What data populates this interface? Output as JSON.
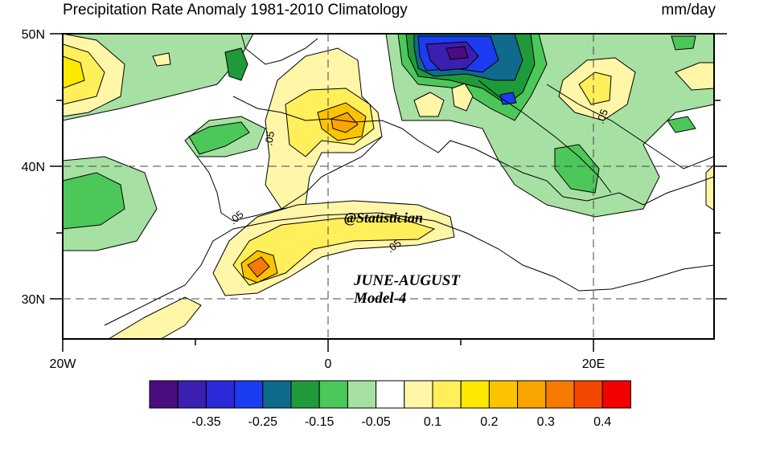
{
  "header": {
    "title": "Precipitation Rate Anomaly  1981-2010 Climatology",
    "units": "mm/day"
  },
  "map": {
    "lat_labels": [
      "50N",
      "40N",
      "30N"
    ],
    "lon_labels": [
      "20W",
      "0",
      "20E"
    ],
    "contour_labels": [
      ".05",
      ".05",
      ".05",
      ".05"
    ]
  },
  "overlay": {
    "watermark": "@Statistician",
    "season": "JUNE-AUGUST",
    "model": "Model-4"
  },
  "colorbar": {
    "colors": [
      "#4b0c80",
      "#3a1fb0",
      "#2a2ad8",
      "#1b3cf0",
      "#106a8c",
      "#1f9a3a",
      "#4cc85a",
      "#a6e0a2",
      "#ffffff",
      "#fff6a8",
      "#ffef5a",
      "#fde800",
      "#fcc400",
      "#f9a400",
      "#f77a00",
      "#f44800",
      "#f40000"
    ],
    "tick_labels": [
      "-0.35",
      "-0.25",
      "-0.15",
      "-0.05",
      "0.1",
      "0.2",
      "0.3",
      "0.4"
    ]
  }
}
